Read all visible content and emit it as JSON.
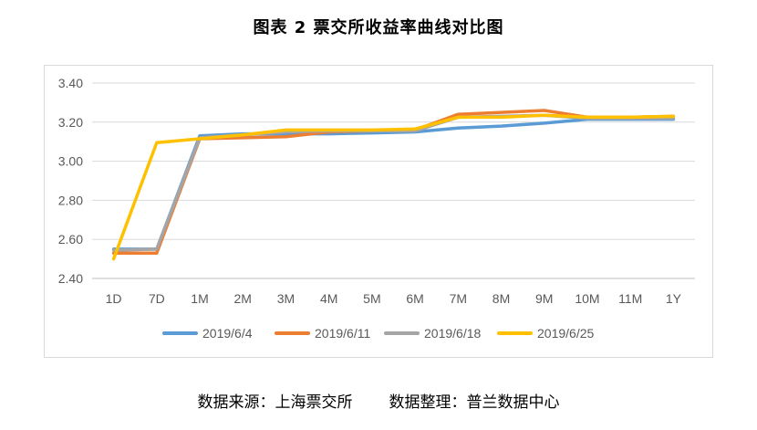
{
  "title": "图表 2 票交所收益率曲线对比图",
  "source": {
    "left": "数据来源：上海票交所",
    "right": "数据整理：普兰数据中心"
  },
  "colors": {
    "2019/6/4": "#5b9bd5",
    "2019/6/11": "#ed7d31",
    "2019/6/18": "#a5a5a5",
    "2019/6/25": "#ffc000",
    "grid": "#d9d9d9",
    "axis": "#bfbfbf",
    "tick_text": "#595959"
  },
  "chart_data": {
    "type": "line",
    "title": "图表 2 票交所收益率曲线对比图",
    "xlabel": "",
    "ylabel": "",
    "categories": [
      "1D",
      "7D",
      "1M",
      "2M",
      "3M",
      "4M",
      "5M",
      "6M",
      "7M",
      "8M",
      "9M",
      "10M",
      "11M",
      "1Y"
    ],
    "ylim": [
      2.4,
      3.4
    ],
    "yticks": [
      "3.40",
      "3.20",
      "3.00",
      "2.80",
      "2.60",
      "2.40"
    ],
    "grid": "horizontal",
    "legend_position": "bottom",
    "series": [
      {
        "name": "2019/6/4",
        "values": [
          2.55,
          2.55,
          3.13,
          3.14,
          3.14,
          3.14,
          3.145,
          3.15,
          3.17,
          3.18,
          3.195,
          3.215,
          3.215,
          3.215
        ]
      },
      {
        "name": "2019/6/11",
        "values": [
          2.53,
          2.53,
          3.115,
          3.12,
          3.125,
          3.15,
          3.155,
          3.16,
          3.24,
          3.25,
          3.26,
          3.225,
          3.225,
          3.23
        ]
      },
      {
        "name": "2019/6/18",
        "values": [
          2.545,
          2.55,
          3.12,
          3.135,
          3.15,
          3.155,
          3.155,
          3.155,
          3.225,
          3.23,
          3.235,
          3.22,
          3.22,
          3.22
        ]
      },
      {
        "name": "2019/6/25",
        "values": [
          2.5,
          3.095,
          3.115,
          3.135,
          3.16,
          3.16,
          3.16,
          3.165,
          3.225,
          3.225,
          3.235,
          3.225,
          3.225,
          3.23
        ]
      }
    ]
  }
}
